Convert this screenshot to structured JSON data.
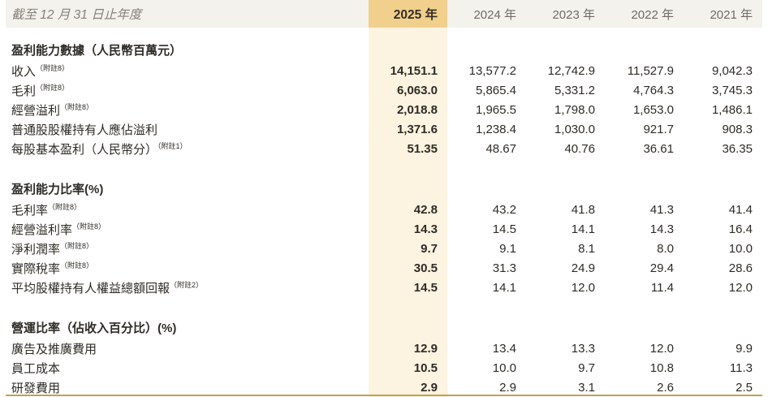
{
  "theme": {
    "header_band_bg": "#f4f2ed",
    "highlight_head_bg": "#f1cf8c",
    "highlight_col_bg": "#fcf3e0",
    "rule_gold": "#c5a04a",
    "text_dark": "#2e2b26",
    "text_gray": "#85827a",
    "year_gray": "#6e6c64"
  },
  "table": {
    "period_label": "截至 12 月 31 日止年度",
    "years": [
      "2025 年",
      "2024 年",
      "2023 年",
      "2022 年",
      "2021 年"
    ],
    "highlighted_year": "2025 年",
    "sections": [
      {
        "title": "盈利能力數據（人民幣百萬元）",
        "rows": [
          {
            "label": "收入",
            "note": "（附註8）",
            "values": [
              "14,151.1",
              "13,577.2",
              "12,742.9",
              "11,527.9",
              "9,042.3"
            ]
          },
          {
            "label": "毛利",
            "note": "（附註8）",
            "values": [
              "6,063.0",
              "5,865.4",
              "5,331.2",
              "4,764.3",
              "3,745.3"
            ]
          },
          {
            "label": "經營溢利",
            "note": "（附註8）",
            "values": [
              "2,018.8",
              "1,965.5",
              "1,798.0",
              "1,653.0",
              "1,486.1"
            ]
          },
          {
            "label": "普通股股權持有人應佔溢利",
            "note": "",
            "values": [
              "1,371.6",
              "1,238.4",
              "1,030.0",
              "921.7",
              "908.3"
            ]
          },
          {
            "label": "每股基本盈利（人民幣分）",
            "note": "（附註1）",
            "values": [
              "51.35",
              "48.67",
              "40.76",
              "36.61",
              "36.35"
            ]
          }
        ]
      },
      {
        "title": "盈利能力比率(%)",
        "rows": [
          {
            "label": "毛利率",
            "note": "（附註8）",
            "values": [
              "42.8",
              "43.2",
              "41.8",
              "41.3",
              "41.4"
            ]
          },
          {
            "label": "經營溢利率",
            "note": "（附註8）",
            "values": [
              "14.3",
              "14.5",
              "14.1",
              "14.3",
              "16.4"
            ]
          },
          {
            "label": "淨利潤率",
            "note": "（附註8）",
            "values": [
              "9.7",
              "9.1",
              "8.1",
              "8.0",
              "10.0"
            ]
          },
          {
            "label": "實際稅率",
            "note": "（附註8）",
            "values": [
              "30.5",
              "31.3",
              "24.9",
              "29.4",
              "28.6"
            ]
          },
          {
            "label": "平均股權持有人權益總額回報",
            "note": "（附註2）",
            "values": [
              "14.5",
              "14.1",
              "12.0",
              "11.4",
              "12.0"
            ]
          }
        ]
      },
      {
        "title": "營運比率（佔收入百分比）(%)",
        "rows": [
          {
            "label": "廣告及推廣費用",
            "note": "",
            "values": [
              "12.9",
              "13.4",
              "13.3",
              "12.0",
              "9.9"
            ]
          },
          {
            "label": "員工成本",
            "note": "",
            "values": [
              "10.5",
              "10.0",
              "9.7",
              "10.8",
              "11.3"
            ]
          },
          {
            "label": "研發費用",
            "note": "",
            "values": [
              "2.9",
              "2.9",
              "3.1",
              "2.6",
              "2.5"
            ]
          }
        ]
      }
    ]
  }
}
